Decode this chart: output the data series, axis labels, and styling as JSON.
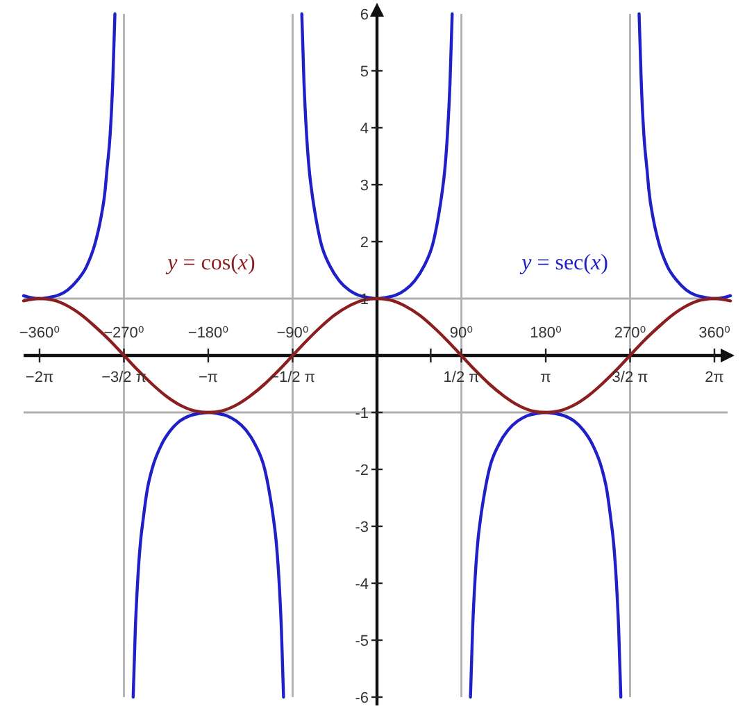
{
  "chart_data": {
    "type": "line",
    "xlim": [
      -6.58,
      6.58
    ],
    "ylim": [
      -6,
      6
    ],
    "x2lim": [
      -377,
      377
    ],
    "xticks": [
      {
        "value": -6.283,
        "label": "−2π"
      },
      {
        "value": -4.712,
        "label": "−3/2 π"
      },
      {
        "value": -3.142,
        "label": "−π"
      },
      {
        "value": -1.571,
        "label": "−1/2 π"
      },
      {
        "value": 1,
        "label": null
      },
      {
        "value": 1.571,
        "label": "1/2 π"
      },
      {
        "value": 3.142,
        "label": "π"
      },
      {
        "value": 4.712,
        "label": "3/2 π"
      },
      {
        "value": 6.283,
        "label": "2π"
      }
    ],
    "x2ticks": [
      {
        "value": -360,
        "label": "−360⁰"
      },
      {
        "value": -270,
        "label": "−270⁰"
      },
      {
        "value": -180,
        "label": "−180⁰"
      },
      {
        "value": -90,
        "label": "−90⁰"
      },
      {
        "value": 90,
        "label": "90⁰"
      },
      {
        "value": 180,
        "label": "180⁰"
      },
      {
        "value": 270,
        "label": "270⁰"
      },
      {
        "value": 360,
        "label": "360⁰"
      }
    ],
    "yticks": [
      -6,
      -5,
      -4,
      -3,
      -2,
      -1,
      1,
      2,
      3,
      4,
      5,
      6
    ],
    "ref_lines": [
      {
        "axis": "x",
        "value": -4.712,
        "color": "#b0b0b0"
      },
      {
        "axis": "x",
        "value": -1.571,
        "color": "#b0b0b0"
      },
      {
        "axis": "x",
        "value": 1.571,
        "color": "#b0b0b0"
      },
      {
        "axis": "x",
        "value": 4.712,
        "color": "#b0b0b0"
      },
      {
        "axis": "y",
        "value": 1,
        "color": "#b0b0b0"
      },
      {
        "axis": "y",
        "value": -1,
        "color": "#b0b0b0"
      }
    ],
    "series": [
      {
        "name": "y = sec(x)",
        "color": "#2020c8",
        "x": [
          -6.58,
          -6.46,
          -6.28,
          -6.11,
          -5.93,
          -5.76,
          -5.59,
          -5.41,
          -5.24,
          -5.15,
          -5.06,
          -5.03,
          -4.97,
          -4.92,
          -4.88,
          -4.71,
          -4.54,
          -4.5,
          -4.45,
          -4.4,
          -4.36,
          -4.28,
          -4.19,
          -4.01,
          -3.84,
          -3.67,
          -3.49,
          -3.32,
          -3.14,
          -2.97,
          -2.79,
          -2.62,
          -2.44,
          -2.27,
          -2.09,
          -2.01,
          -1.92,
          -1.88,
          -1.83,
          -1.78,
          -1.74,
          -1.57,
          -1.4,
          -1.36,
          -1.31,
          -1.26,
          -1.22,
          -1.13,
          -1.05,
          -0.87,
          -0.7,
          -0.52,
          -0.35,
          -0.17,
          0,
          0.17,
          0.35,
          0.52,
          0.7,
          0.87,
          1.05,
          1.13,
          1.22,
          1.26,
          1.31,
          1.36,
          1.4,
          1.57,
          1.74,
          1.78,
          1.83,
          1.88,
          1.92,
          2.01,
          2.09,
          2.27,
          2.44,
          2.62,
          2.79,
          2.97,
          3.14,
          3.32,
          3.49,
          3.67,
          3.84,
          4.01,
          4.19,
          4.28,
          4.36,
          4.4,
          4.45,
          4.5,
          4.54,
          4.71,
          4.88,
          4.92,
          4.97,
          5.03,
          5.06,
          5.15,
          5.24,
          5.41,
          5.59,
          5.76,
          5.93,
          6.11,
          6.28,
          6.46,
          6.58
        ],
        "values": [
          1.05,
          1.02,
          1,
          1.02,
          1.06,
          1.15,
          1.31,
          1.56,
          2,
          2.37,
          2.92,
          3.24,
          3.86,
          4.81,
          6,
          null,
          -6,
          -4.81,
          -3.86,
          -3.24,
          -2.92,
          -2.37,
          -2,
          -1.56,
          -1.31,
          -1.15,
          -1.06,
          -1.02,
          -1,
          -1.02,
          -1.06,
          -1.15,
          -1.31,
          -1.56,
          -2,
          -2.37,
          -2.92,
          -3.24,
          -3.86,
          -4.81,
          -6,
          null,
          6,
          4.81,
          3.86,
          3.24,
          2.92,
          2.37,
          2,
          1.56,
          1.31,
          1.15,
          1.06,
          1.02,
          1,
          1.02,
          1.06,
          1.15,
          1.31,
          1.56,
          2,
          2.37,
          2.92,
          3.24,
          3.86,
          4.81,
          6,
          null,
          -6,
          -4.81,
          -3.86,
          -3.24,
          -2.92,
          -2.37,
          -2,
          -1.56,
          -1.31,
          -1.15,
          -1.06,
          -1.02,
          -1,
          -1.02,
          -1.06,
          -1.15,
          -1.31,
          -1.56,
          -2,
          -2.37,
          -2.92,
          -3.24,
          -3.86,
          -4.81,
          -6,
          null,
          6,
          4.81,
          3.86,
          3.24,
          2.92,
          2.37,
          2,
          1.56,
          1.31,
          1.15,
          1.06,
          1.02,
          1,
          1.02,
          1.05
        ]
      },
      {
        "name": "y = cos(x)",
        "color": "#8b1f1f",
        "x": [
          -6.58,
          -6.28,
          -6.02,
          -5.76,
          -5.5,
          -5.24,
          -4.97,
          -4.71,
          -4.45,
          -4.19,
          -3.93,
          -3.67,
          -3.4,
          -3.14,
          -2.88,
          -2.62,
          -2.36,
          -2.09,
          -1.83,
          -1.57,
          -1.31,
          -1.05,
          -0.79,
          -0.52,
          -0.26,
          0,
          0.26,
          0.52,
          0.79,
          1.05,
          1.31,
          1.57,
          1.83,
          2.09,
          2.36,
          2.62,
          2.88,
          3.14,
          3.4,
          3.67,
          3.93,
          4.19,
          4.45,
          4.71,
          4.97,
          5.24,
          5.5,
          5.76,
          6.02,
          6.28,
          6.58
        ],
        "values": [
          0.96,
          1,
          0.97,
          0.87,
          0.71,
          0.5,
          0.26,
          0,
          -0.26,
          -0.5,
          -0.71,
          -0.87,
          -0.97,
          -1,
          -0.97,
          -0.87,
          -0.71,
          -0.5,
          -0.26,
          0,
          0.26,
          0.5,
          0.71,
          0.87,
          0.97,
          1,
          0.97,
          0.87,
          0.71,
          0.5,
          0.26,
          0,
          -0.26,
          -0.5,
          -0.71,
          -0.87,
          -0.97,
          -1,
          -0.97,
          -0.87,
          -0.71,
          -0.5,
          -0.26,
          0,
          0.26,
          0.5,
          0.71,
          0.87,
          0.97,
          1,
          0.96
        ]
      }
    ]
  }
}
